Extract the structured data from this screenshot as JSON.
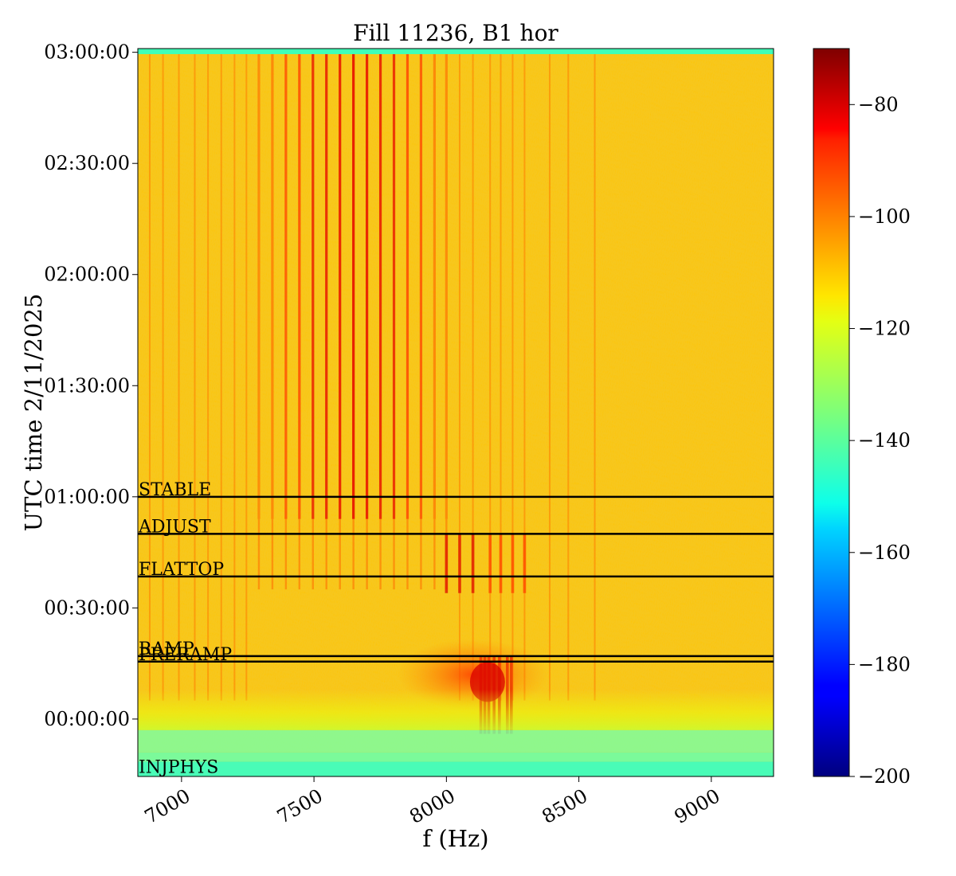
{
  "chart_data": {
    "type": "heatmap",
    "title": "Fill 11236, B1 hor",
    "xlabel": "f (Hz)",
    "ylabel": "UTC time 2/11/2025",
    "xlim": [
      6835,
      9235
    ],
    "ylim_minutes": [
      -15.5,
      181
    ],
    "x_ticks": [
      {
        "value": 7000,
        "label": "7000"
      },
      {
        "value": 7500,
        "label": "7500"
      },
      {
        "value": 8000,
        "label": "8000"
      },
      {
        "value": 8500,
        "label": "8500"
      },
      {
        "value": 9000,
        "label": "9000"
      }
    ],
    "y_ticks": [
      {
        "value": 0,
        "label": "00:00:00"
      },
      {
        "value": 30,
        "label": "00:30:00"
      },
      {
        "value": 60,
        "label": "01:00:00"
      },
      {
        "value": 90,
        "label": "01:30:00"
      },
      {
        "value": 120,
        "label": "02:00:00"
      },
      {
        "value": 150,
        "label": "02:30:00"
      },
      {
        "value": 180,
        "label": "03:00:00"
      }
    ],
    "colorbar": {
      "colormap": "jet",
      "range": [
        -200,
        -70
      ],
      "ticks": [
        {
          "value": -80,
          "label": "−80"
        },
        {
          "value": -100,
          "label": "−100"
        },
        {
          "value": -120,
          "label": "−120"
        },
        {
          "value": -140,
          "label": "−140"
        },
        {
          "value": -160,
          "label": "−160"
        },
        {
          "value": -180,
          "label": "−180"
        },
        {
          "value": -200,
          "label": "−200"
        }
      ]
    },
    "beam_modes": [
      {
        "label": "INJPHYS",
        "time_min": -15
      },
      {
        "label": "PRERAMP",
        "time_min": 15.5
      },
      {
        "label": "RAMP",
        "time_min": 17
      },
      {
        "label": "FLATTOP",
        "time_min": 38.5
      },
      {
        "label": "ADJUST",
        "time_min": 50
      },
      {
        "label": "STABLE",
        "time_min": 60
      }
    ],
    "spectral_lines_hz": {
      "stable_comb": [
        7292,
        7343,
        7394,
        7445,
        7496,
        7547,
        7598,
        7649,
        7700,
        7751,
        7802,
        7853,
        7904,
        7955,
        8000
      ],
      "stable_faint": [
        6880,
        6930,
        6990,
        7050,
        7100,
        7150,
        7200,
        7245,
        8050,
        8100,
        8165,
        8205,
        8250,
        8295,
        8390,
        8460,
        8560
      ],
      "flattop_lines": [
        8000,
        8050,
        8100,
        8165,
        8205,
        8250,
        8295
      ],
      "ramp_lines": [
        8130,
        8145,
        8160,
        8180,
        8200,
        8230,
        8245
      ]
    },
    "background_level_db": -110,
    "grid": false
  }
}
